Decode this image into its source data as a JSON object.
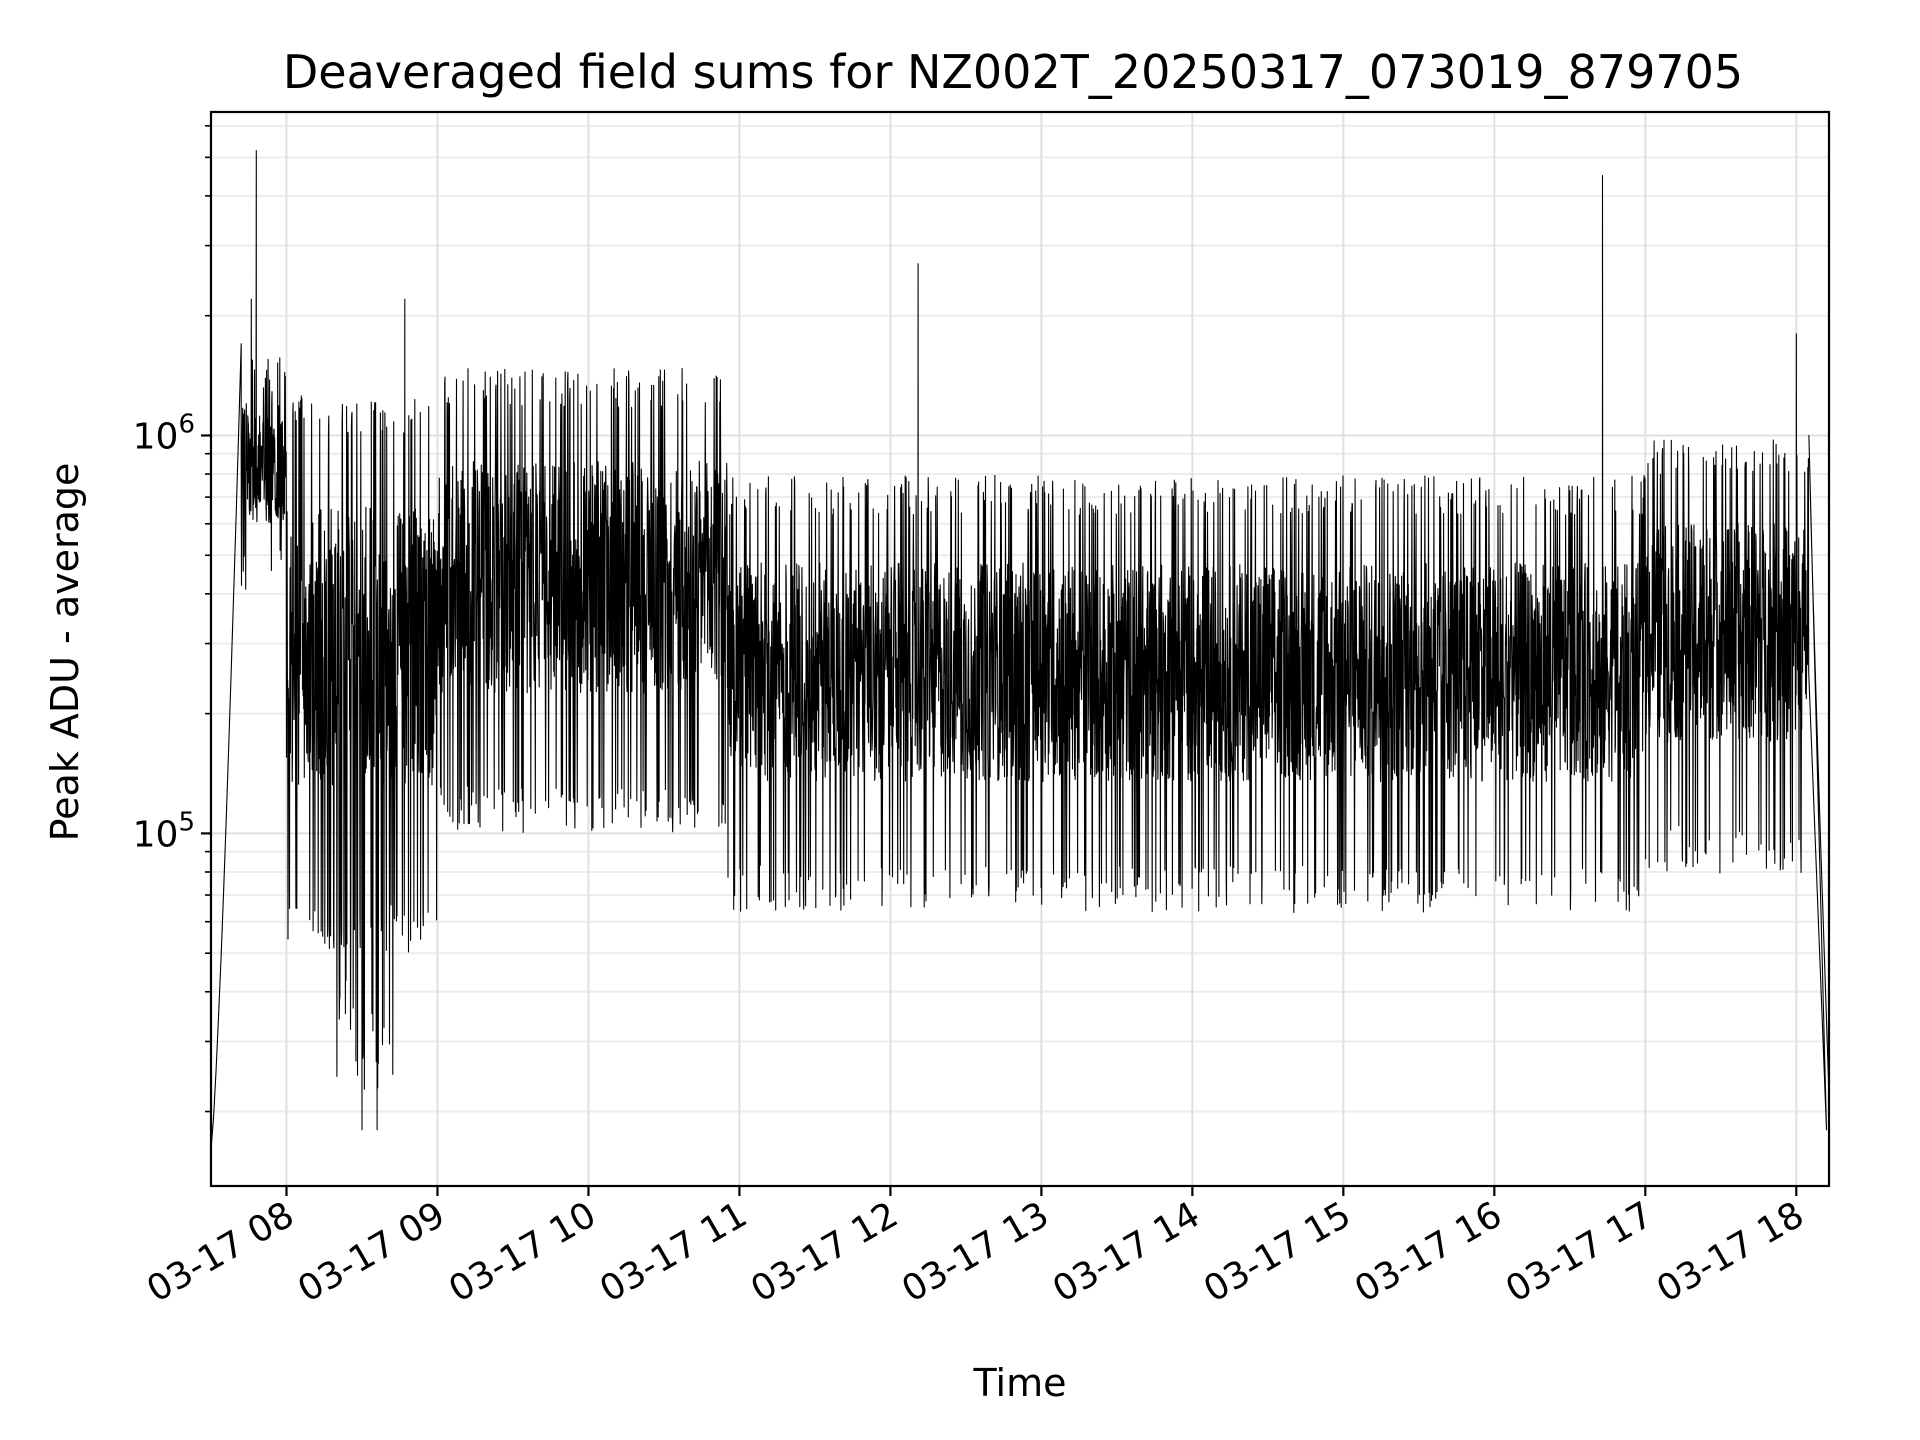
{
  "chart_data": {
    "type": "line",
    "title": "Deaveraged field sums for NZ002T_20250317_073019_879705",
    "xlabel": "Time",
    "ylabel": "Peak ADU - average",
    "y_scale": "log",
    "ylim": [
      13000,
      6500000
    ],
    "xlim": [
      "2025-03-17 07:30",
      "2025-03-17 18:13"
    ],
    "x_ticks": [
      "2025-03-17 08:00",
      "2025-03-17 09:00",
      "2025-03-17 10:00",
      "2025-03-17 11:00",
      "2025-03-17 12:00",
      "2025-03-17 13:00",
      "2025-03-17 14:00",
      "2025-03-17 15:00",
      "2025-03-17 16:00",
      "2025-03-17 17:00",
      "2025-03-17 18:00"
    ],
    "x_tick_labels": [
      "03-17 08",
      "03-17 09",
      "03-17 10",
      "03-17 11",
      "03-17 12",
      "03-17 13",
      "03-17 14",
      "03-17 15",
      "03-17 16",
      "03-17 17",
      "03-17 18"
    ],
    "y_ticks": [
      100000,
      1000000
    ],
    "y_tick_labels": [
      "10^5",
      "10^6"
    ],
    "grid": true,
    "legend": "none",
    "line_color": "#000000",
    "series_envelope": [
      {
        "period": "07:30–07:42",
        "trend": "rises from ~16000 to ~1700000"
      },
      {
        "period": "07:42–08:00",
        "typical_range": [
          400000,
          1700000
        ]
      },
      {
        "period": "08:00–09:00",
        "typical_range": [
          50000,
          1300000
        ],
        "min": 18000
      },
      {
        "period": "09:00–10:55",
        "typical_range": [
          100000,
          1500000
        ]
      },
      {
        "period": "10:55–17:00",
        "typical_range": [
          60000,
          800000
        ]
      },
      {
        "period": "17:00–18:05",
        "typical_range": [
          80000,
          1000000
        ]
      },
      {
        "period": "18:05–18:13",
        "trend": "falls to ~22000"
      }
    ],
    "spikes": [
      {
        "x": "2025-03-17 07:48",
        "y": 5200000
      },
      {
        "x": "2025-03-17 07:46",
        "y": 2200000
      },
      {
        "x": "2025-03-17 08:47",
        "y": 2200000
      },
      {
        "x": "2025-03-17 12:11",
        "y": 2700000
      },
      {
        "x": "2025-03-17 16:43",
        "y": 4500000
      },
      {
        "x": "2025-03-17 18:00",
        "y": 1800000
      }
    ],
    "dips": [
      {
        "x": "2025-03-17 08:30",
        "y": 18000
      },
      {
        "x": "2025-03-17 08:36",
        "y": 18000
      },
      {
        "x": "2025-03-17 18:12",
        "y": 22000
      }
    ]
  }
}
